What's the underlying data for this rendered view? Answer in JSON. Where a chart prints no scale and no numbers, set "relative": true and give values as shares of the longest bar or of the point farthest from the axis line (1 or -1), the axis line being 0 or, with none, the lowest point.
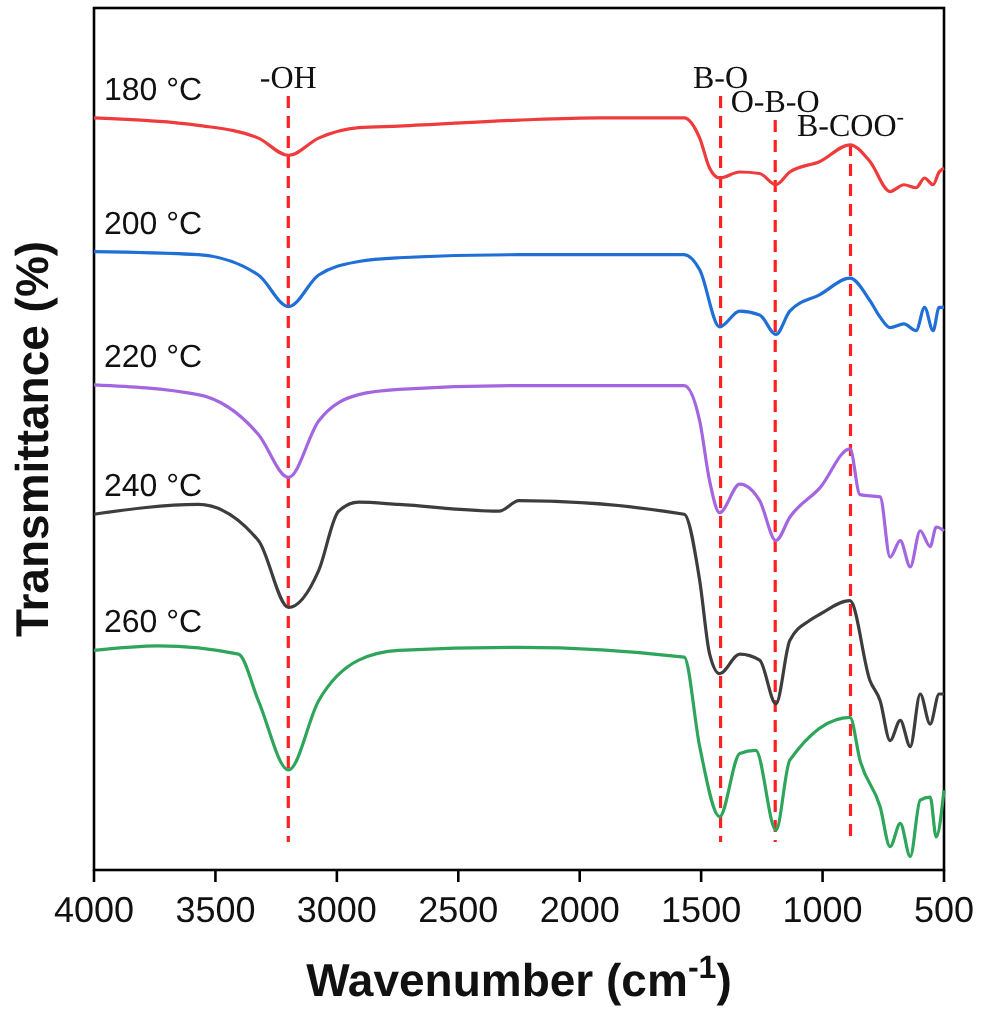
{
  "chart_data": {
    "type": "line",
    "relative": true,
    "tick_labels": "x",
    "xlabel": "Wavenumber (cm$^{-1}$)",
    "ylabel": "Transmittance (%)",
    "xlim": [
      4000,
      500
    ],
    "xticks": [
      4000,
      3500,
      3000,
      2500,
      2000,
      1500,
      1000,
      500
    ],
    "grid": false,
    "marker": "none",
    "line_style": "solid",
    "series": [
      {
        "name": "180 °C",
        "color": "#ef3b3b",
        "x": [
          4000,
          3571,
          3323,
          3199,
          3075,
          2910,
          2745,
          2250,
          1919,
          1570,
          1506,
          1465,
          1424,
          1341,
          1259,
          1192,
          1135,
          1011,
          887,
          805,
          722,
          665,
          615,
          580,
          545,
          520,
          500
        ],
        "values": [
          1.0,
          0.99,
          0.973,
          0.95,
          0.973,
          0.987,
          0.989,
          0.997,
          1.0,
          1.0,
          0.973,
          0.933,
          0.92,
          0.928,
          0.926,
          0.911,
          0.928,
          0.942,
          0.964,
          0.942,
          0.902,
          0.911,
          0.907,
          0.92,
          0.911,
          0.928,
          0.933
        ]
      },
      {
        "name": "200 °C",
        "color": "#1f6fd6",
        "x": [
          4000,
          3571,
          3323,
          3199,
          3075,
          2910,
          2745,
          2250,
          1919,
          1570,
          1506,
          1424,
          1341,
          1259,
          1192,
          1135,
          1011,
          887,
          805,
          763,
          722,
          665,
          615,
          580,
          545,
          520,
          500
        ],
        "values": [
          0.822,
          0.818,
          0.791,
          0.749,
          0.791,
          0.809,
          0.814,
          0.818,
          0.818,
          0.818,
          0.798,
          0.722,
          0.743,
          0.738,
          0.712,
          0.743,
          0.765,
          0.787,
          0.757,
          0.735,
          0.721,
          0.726,
          0.717,
          0.748,
          0.717,
          0.748,
          0.748
        ]
      },
      {
        "name": "220 °C",
        "color": "#a366e0",
        "x": [
          4000,
          3571,
          3323,
          3199,
          3075,
          2910,
          2745,
          2250,
          1919,
          1570,
          1506,
          1465,
          1424,
          1341,
          1259,
          1192,
          1135,
          1011,
          887,
          846,
          763,
          722,
          680,
          639,
          598,
          557,
          532,
          500
        ],
        "values": [
          0.645,
          0.632,
          0.579,
          0.522,
          0.597,
          0.632,
          0.639,
          0.644,
          0.644,
          0.644,
          0.597,
          0.517,
          0.475,
          0.513,
          0.491,
          0.438,
          0.469,
          0.508,
          0.56,
          0.499,
          0.496,
          0.416,
          0.438,
          0.403,
          0.451,
          0.43,
          0.456,
          0.451
        ]
      },
      {
        "name": "240 °C",
        "color": "#3d3d3d",
        "x": [
          4000,
          3571,
          3323,
          3199,
          3075,
          2993,
          2910,
          2745,
          2332,
          2250,
          1570,
          1506,
          1465,
          1424,
          1341,
          1259,
          1192,
          1135,
          1052,
          1011,
          887,
          805,
          763,
          722,
          680,
          639,
          598,
          557,
          520,
          500
        ],
        "values": [
          0.473,
          0.486,
          0.438,
          0.349,
          0.398,
          0.477,
          0.489,
          0.486,
          0.477,
          0.491,
          0.473,
          0.385,
          0.287,
          0.261,
          0.287,
          0.279,
          0.221,
          0.305,
          0.332,
          0.34,
          0.358,
          0.252,
          0.225,
          0.172,
          0.199,
          0.164,
          0.234,
          0.194,
          0.234,
          0.234
        ]
      },
      {
        "name": "260 °C",
        "color": "#2ea55a",
        "x": [
          4000,
          3736,
          3405,
          3323,
          3199,
          3075,
          2910,
          2745,
          2250,
          1570,
          1506,
          1424,
          1341,
          1275,
          1192,
          1135,
          887,
          846,
          763,
          722,
          680,
          639,
          598,
          557,
          532,
          500
        ],
        "values": [
          0.292,
          0.298,
          0.287,
          0.225,
          0.133,
          0.225,
          0.279,
          0.292,
          0.296,
          0.283,
          0.164,
          0.071,
          0.155,
          0.159,
          0.053,
          0.146,
          0.203,
          0.146,
          0.084,
          0.031,
          0.062,
          0.018,
          0.093,
          0.097,
          0.044,
          0.106
        ]
      }
    ],
    "ref_lines": [
      {
        "axis": "x",
        "value": 3200,
        "label": "-OH",
        "color": "#ff2020",
        "line_style": "dashed"
      },
      {
        "axis": "x",
        "value": 1420,
        "label": "B-O",
        "color": "#ff2020",
        "line_style": "dashed"
      },
      {
        "axis": "x",
        "value": 1195,
        "label": "O-B-O",
        "color": "#ff2020",
        "line_style": "dashed"
      },
      {
        "axis": "x",
        "value": 885,
        "label": "B-COO$^{-}$",
        "color": "#ff2020",
        "line_style": "dashed"
      }
    ]
  }
}
